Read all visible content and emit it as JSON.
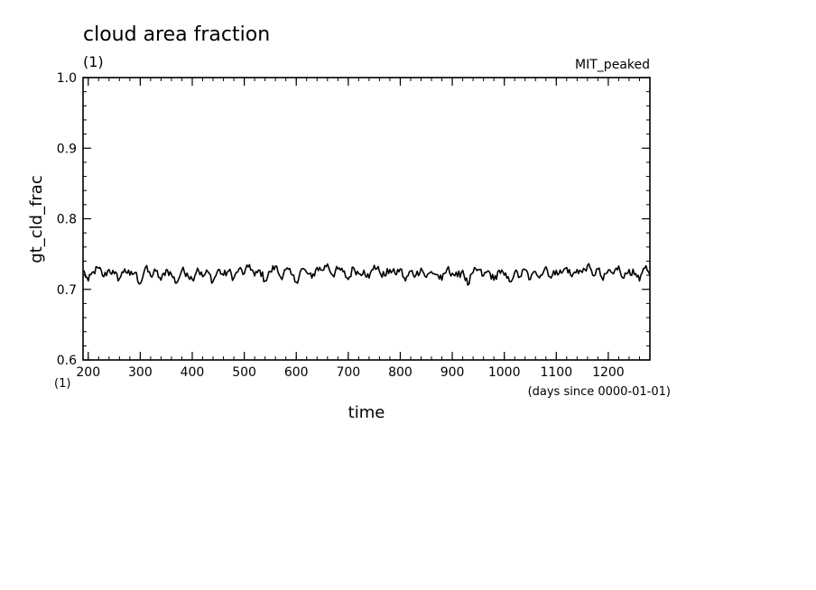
{
  "chart_data": {
    "type": "line",
    "title": "cloud area fraction",
    "title_units": "(1)",
    "experiment_label": "MIT_peaked",
    "ylabel": "gt_cld_frac",
    "xlabel": "time",
    "x_units": "(days since 0000-01-01)",
    "y_units": "(1)",
    "xlim": [
      190,
      1280
    ],
    "ylim": [
      0.6,
      1.0
    ],
    "x_ticks": [
      200,
      300,
      400,
      500,
      600,
      700,
      800,
      900,
      1000,
      1100,
      1200
    ],
    "x_tick_labels": [
      "200",
      "300",
      "400",
      "500",
      "600",
      "700",
      "800",
      "900",
      "1000",
      "1100",
      "1200"
    ],
    "y_ticks": [
      0.6,
      0.7,
      0.8,
      0.9,
      1.0
    ],
    "y_tick_labels": [
      "0.6",
      "0.7",
      "0.8",
      "0.9",
      "1.0"
    ],
    "grid": false,
    "line_color": "#000000",
    "series": [
      {
        "x": [
          190,
          200,
          210,
          220,
          230,
          240,
          250,
          260,
          270,
          280,
          290,
          300,
          310,
          320,
          330,
          340,
          350,
          360,
          370,
          380,
          390,
          400,
          410,
          420,
          430,
          440,
          450,
          460,
          470,
          480,
          490,
          500,
          510,
          520,
          530,
          540,
          550,
          560,
          570,
          580,
          590,
          600,
          610,
          620,
          630,
          640,
          650,
          660,
          670,
          680,
          690,
          700,
          710,
          720,
          730,
          740,
          750,
          760,
          770,
          780,
          790,
          800,
          810,
          820,
          830,
          840,
          850,
          860,
          870,
          880,
          890,
          900,
          910,
          920,
          930,
          940,
          950,
          960,
          970,
          980,
          990,
          1000,
          1010,
          1020,
          1030,
          1040,
          1050,
          1060,
          1070,
          1080,
          1090,
          1100,
          1110,
          1120,
          1130,
          1140,
          1150,
          1160,
          1170,
          1180,
          1190,
          1200,
          1210,
          1220,
          1230,
          1240,
          1250,
          1260,
          1270,
          1280
        ],
        "y": [
          0.727,
          0.712,
          0.725,
          0.73,
          0.718,
          0.728,
          0.722,
          0.715,
          0.729,
          0.72,
          0.724,
          0.708,
          0.731,
          0.719,
          0.726,
          0.713,
          0.728,
          0.721,
          0.709,
          0.727,
          0.723,
          0.714,
          0.73,
          0.718,
          0.725,
          0.711,
          0.728,
          0.72,
          0.726,
          0.716,
          0.729,
          0.722,
          0.735,
          0.719,
          0.727,
          0.712,
          0.725,
          0.733,
          0.717,
          0.728,
          0.722,
          0.71,
          0.729,
          0.724,
          0.716,
          0.731,
          0.727,
          0.736,
          0.72,
          0.729,
          0.725,
          0.714,
          0.731,
          0.722,
          0.727,
          0.716,
          0.734,
          0.725,
          0.719,
          0.728,
          0.722,
          0.729,
          0.712,
          0.726,
          0.72,
          0.73,
          0.717,
          0.725,
          0.721,
          0.713,
          0.729,
          0.723,
          0.718,
          0.727,
          0.706,
          0.724,
          0.728,
          0.719,
          0.726,
          0.713,
          0.727,
          0.72,
          0.711,
          0.724,
          0.718,
          0.728,
          0.714,
          0.725,
          0.72,
          0.732,
          0.716,
          0.727,
          0.723,
          0.731,
          0.718,
          0.728,
          0.724,
          0.734,
          0.72,
          0.729,
          0.713,
          0.727,
          0.722,
          0.733,
          0.716,
          0.728,
          0.721,
          0.712,
          0.73,
          0.72
        ]
      }
    ]
  }
}
